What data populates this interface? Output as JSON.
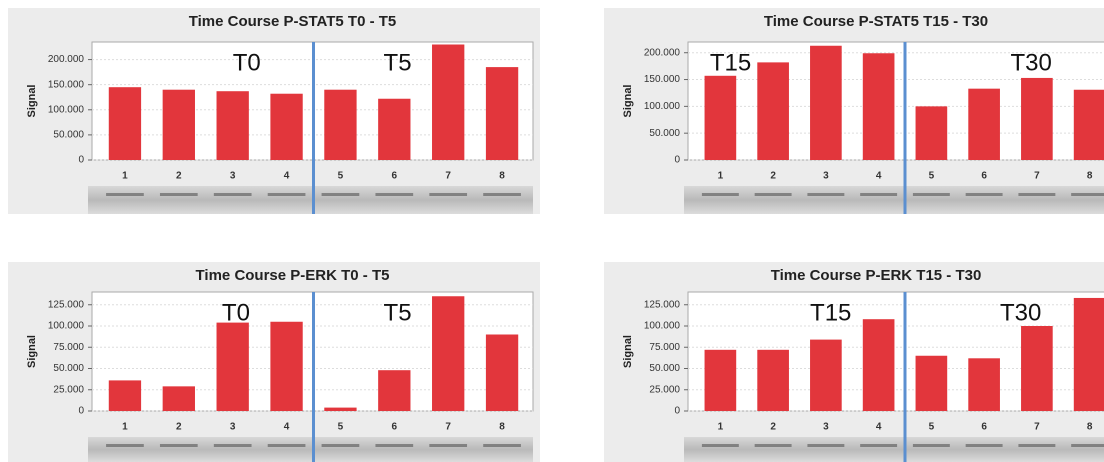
{
  "chart_data": [
    {
      "type": "bar",
      "title": "Time Course P-STAT5 T0 - T5",
      "y_label": "Signal",
      "categories": [
        "1",
        "2",
        "3",
        "4",
        "5",
        "6",
        "7",
        "8"
      ],
      "values": [
        145000,
        140000,
        137000,
        132000,
        140000,
        122000,
        230000,
        185000
      ],
      "color": "#e2363c",
      "ylim": [
        0,
        235000
      ],
      "yticks": [
        0,
        {
          "value": 50000,
          "label": "50.000"
        },
        {
          "value": 100000,
          "label": "100.000"
        },
        {
          "value": 150000,
          "label": "150.000"
        },
        {
          "value": 200000,
          "label": "200.000"
        }
      ],
      "grid": true,
      "annotations": [
        "T0",
        "T5"
      ]
    },
    {
      "type": "bar",
      "title": "Time Course P-STAT5 T15 - T30",
      "y_label": "Signal",
      "categories": [
        "1",
        "2",
        "3",
        "4",
        "5",
        "6",
        "7",
        "8"
      ],
      "values": [
        157000,
        182000,
        213000,
        199000,
        100000,
        133000,
        153000,
        131000
      ],
      "color": "#e2363c",
      "ylim": [
        0,
        220000
      ],
      "yticks": [
        0,
        {
          "value": 50000,
          "label": "50.000"
        },
        {
          "value": 100000,
          "label": "100.000"
        },
        {
          "value": 150000,
          "label": "150.000"
        },
        {
          "value": 200000,
          "label": "200.000"
        }
      ],
      "grid": true,
      "annotations": [
        "T15",
        "T30"
      ]
    },
    {
      "type": "bar",
      "title": "Time Course P-ERK T0 - T5",
      "y_label": "Signal",
      "categories": [
        "1",
        "2",
        "3",
        "4",
        "5",
        "6",
        "7",
        "8"
      ],
      "values": [
        36000,
        29000,
        104000,
        105000,
        4000,
        48000,
        135000,
        90000
      ],
      "color": "#e2363c",
      "ylim": [
        0,
        140000
      ],
      "yticks": [
        0,
        {
          "value": 25000,
          "label": "25.000"
        },
        {
          "value": 50000,
          "label": "50.000"
        },
        {
          "value": 75000,
          "label": "75.000"
        },
        {
          "value": 100000,
          "label": "100.000"
        },
        {
          "value": 125000,
          "label": "125.000"
        }
      ],
      "grid": true,
      "annotations": [
        "T0",
        "T5"
      ]
    },
    {
      "type": "bar",
      "title": "Time Course P-ERK T15 - T30",
      "y_label": "Signal",
      "categories": [
        "1",
        "2",
        "3",
        "4",
        "5",
        "6",
        "7",
        "8"
      ],
      "values": [
        72000,
        72000,
        84000,
        108000,
        65000,
        62000,
        100000,
        133000
      ],
      "color": "#e2363c",
      "ylim": [
        0,
        140000
      ],
      "yticks": [
        0,
        {
          "value": 25000,
          "label": "25.000"
        },
        {
          "value": 50000,
          "label": "50.000"
        },
        {
          "value": 75000,
          "label": "75.000"
        },
        {
          "value": 100000,
          "label": "100.000"
        },
        {
          "value": 125000,
          "label": "125.000"
        }
      ],
      "grid": true,
      "annotations": [
        "T15",
        "T30"
      ]
    }
  ]
}
